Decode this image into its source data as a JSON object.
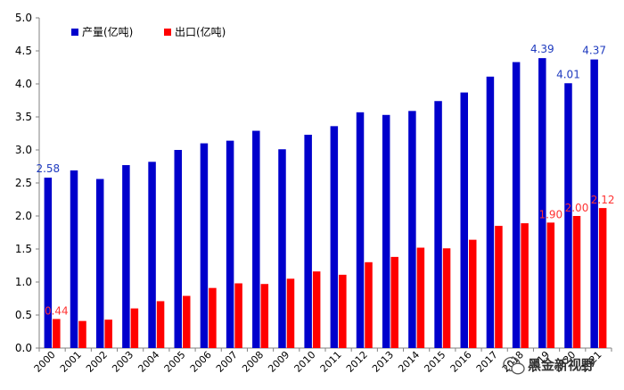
{
  "chart_data": {
    "type": "bar",
    "title": "",
    "xlabel": "",
    "ylabel": "",
    "ylim": [
      0,
      5.0
    ],
    "yticks": [
      "0.0",
      "0.5",
      "1.0",
      "1.5",
      "2.0",
      "2.5",
      "3.0",
      "3.5",
      "4.0",
      "4.5",
      "5.0"
    ],
    "grid": false,
    "legend_position": "top-left",
    "categories": [
      "2000",
      "2001",
      "2002",
      "2003",
      "2004",
      "2005",
      "2006",
      "2007",
      "2008",
      "2009",
      "2010",
      "2011",
      "2012",
      "2013",
      "2014",
      "2015",
      "2016",
      "2017",
      "2018",
      "2019",
      "2020",
      "2021"
    ],
    "series": [
      {
        "name": "产量(亿吨)",
        "color": "#0000cc",
        "label_color": "#1f3bbf",
        "values": [
          2.58,
          2.69,
          2.56,
          2.77,
          2.82,
          3.0,
          3.1,
          3.14,
          3.29,
          3.01,
          3.23,
          3.36,
          3.57,
          3.53,
          3.59,
          3.74,
          3.87,
          4.11,
          4.33,
          4.39,
          4.01,
          4.37
        ],
        "data_labels": {
          "0": "2.58",
          "19": "4.39",
          "20": "4.01",
          "21": "4.37"
        }
      },
      {
        "name": "出口(亿吨)",
        "color": "#ff0000",
        "label_color": "#ff3333",
        "values": [
          0.44,
          0.41,
          0.43,
          0.6,
          0.71,
          0.79,
          0.91,
          0.98,
          0.97,
          1.05,
          1.16,
          1.11,
          1.3,
          1.38,
          1.52,
          1.51,
          1.64,
          1.85,
          1.89,
          1.9,
          2.0,
          2.12
        ],
        "data_labels": {
          "0": "0.44",
          "19": "1.90",
          "20": "2.00",
          "21": "2.12"
        }
      }
    ]
  },
  "watermark": {
    "text": "黑金新视野",
    "icon": "wechat-icon"
  }
}
